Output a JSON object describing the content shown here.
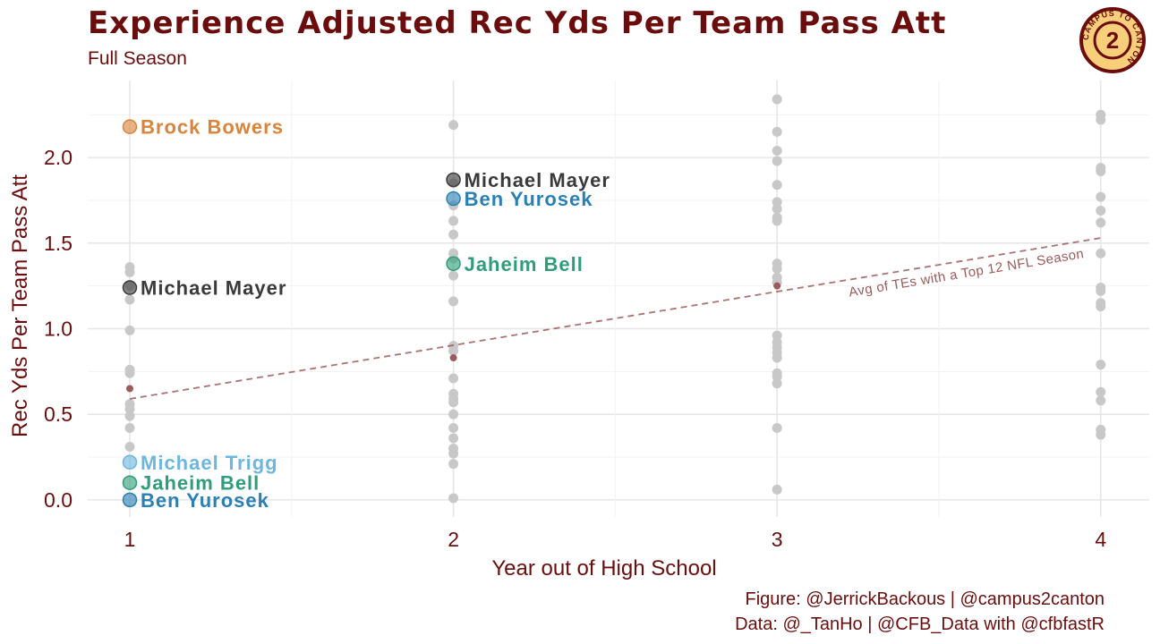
{
  "title": "Experience Adjusted Rec Yds Per Team Pass Att",
  "subtitle": "Full Season",
  "caption": {
    "figure": "Figure: @JerrickBackous | @campus2canton",
    "data": "Data: @_TanHo | @CFB_Data with @cfbfastR"
  },
  "logo": {
    "text": "CAMPUS TO CANTON",
    "icon": "campus2canton-logo-icon"
  },
  "colors": {
    "title": "#6b0d0d",
    "background_points": "#c8c8c8",
    "avg_line": "#9c5a5a",
    "grid": "#ebebeb",
    "logo_fill": "#f7cf7a"
  },
  "chart_data": {
    "type": "scatter",
    "xlabel": "Year out of High School",
    "ylabel": "Rec Yds Per Team Pass Att",
    "xlim": [
      0.87,
      4.15
    ],
    "ylim": [
      -0.1,
      2.45
    ],
    "x_ticks": [
      1,
      2,
      3,
      4
    ],
    "y_ticks": [
      0.0,
      0.5,
      1.0,
      1.5,
      2.0
    ],
    "y_tick_labels": [
      "0.0",
      "0.5",
      "1.0",
      "1.5",
      "2.0"
    ],
    "grid": true,
    "legend": "none",
    "background_points": {
      "1": [
        1.36,
        1.33,
        1.25,
        1.17,
        0.99,
        0.76,
        0.74,
        0.56,
        0.53,
        0.49,
        0.42,
        0.31
      ],
      "2": [
        2.19,
        1.85,
        1.72,
        1.63,
        1.55,
        1.44,
        1.41,
        1.31,
        1.16,
        0.9,
        0.87,
        0.71,
        0.62,
        0.59,
        0.57,
        0.5,
        0.42,
        0.36,
        0.3,
        0.27,
        0.21,
        0.01
      ],
      "3": [
        2.34,
        2.15,
        2.04,
        1.98,
        1.84,
        1.74,
        1.7,
        1.65,
        1.63,
        1.38,
        1.35,
        1.3,
        1.27,
        0.96,
        0.92,
        0.89,
        0.86,
        0.83,
        0.74,
        0.72,
        0.68,
        0.42,
        0.06
      ],
      "4": [
        2.25,
        2.22,
        1.94,
        1.92,
        1.77,
        1.69,
        1.62,
        1.44,
        1.24,
        1.22,
        1.15,
        1.13,
        0.79,
        0.63,
        0.58,
        0.41,
        0.38
      ]
    },
    "avg_series": {
      "name": "Avg of TEs with a Top 12 NFL Season",
      "x": [
        1,
        2,
        3
      ],
      "y": [
        0.65,
        0.83,
        1.25
      ],
      "trend": {
        "x": [
          1,
          4
        ],
        "y": [
          0.59,
          1.53
        ]
      }
    },
    "highlighted": [
      {
        "name": "Brock Bowers",
        "x": 1,
        "y": 2.18,
        "color": "#d9843a"
      },
      {
        "name": "Michael Mayer",
        "x": 1,
        "y": 1.24,
        "color": "#3a3a3a"
      },
      {
        "name": "Michael Trigg",
        "x": 1,
        "y": 0.22,
        "color": "#6cb6df"
      },
      {
        "name": "Jaheim Bell",
        "x": 1,
        "y": 0.1,
        "color": "#2f9e78"
      },
      {
        "name": "Ben Yurosek",
        "x": 1,
        "y": 0.0,
        "color": "#2a7fb5"
      },
      {
        "name": "Michael Mayer",
        "x": 2,
        "y": 1.87,
        "color": "#3a3a3a"
      },
      {
        "name": "Ben Yurosek",
        "x": 2,
        "y": 1.76,
        "color": "#2a7fb5"
      },
      {
        "name": "Jaheim Bell",
        "x": 2,
        "y": 1.38,
        "color": "#2f9e78"
      }
    ]
  }
}
